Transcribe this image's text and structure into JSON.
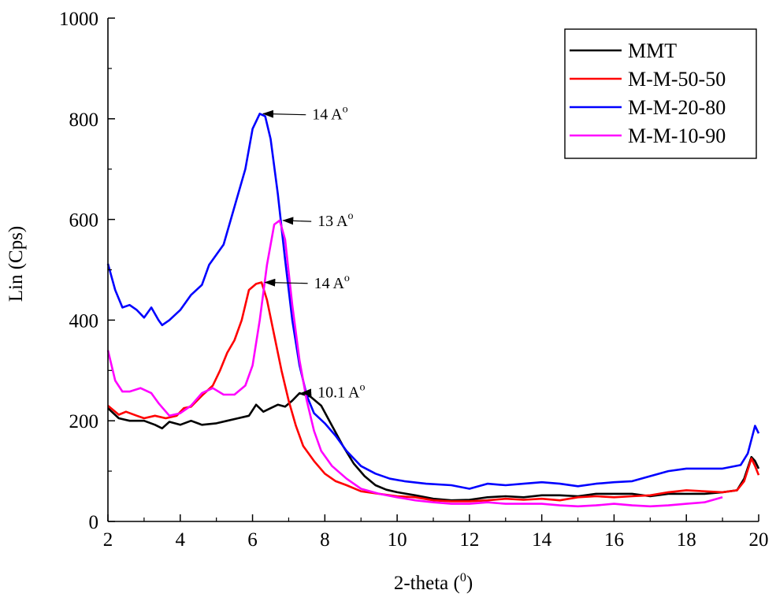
{
  "chart_data": {
    "type": "line",
    "xlabel": "2-theta (",
    "xlabel_sup": "0",
    "xlabel_end": ")",
    "ylabel": "Lin (Cps)",
    "xlim": [
      2,
      20
    ],
    "ylim": [
      0,
      1000
    ],
    "x_ticks": [
      "2",
      "4",
      "6",
      "8",
      "10",
      "12",
      "14",
      "16",
      "18",
      "20"
    ],
    "y_ticks": [
      "0",
      "200",
      "400",
      "600",
      "800",
      "1000"
    ],
    "legend_position": "top-right",
    "series": [
      {
        "name": "MMT",
        "color": "#000000",
        "points": [
          [
            2,
            225
          ],
          [
            2.3,
            205
          ],
          [
            2.6,
            200
          ],
          [
            3,
            200
          ],
          [
            3.3,
            192
          ],
          [
            3.5,
            185
          ],
          [
            3.7,
            198
          ],
          [
            4,
            192
          ],
          [
            4.3,
            200
          ],
          [
            4.6,
            192
          ],
          [
            5,
            195
          ],
          [
            5.3,
            200
          ],
          [
            5.6,
            205
          ],
          [
            5.9,
            210
          ],
          [
            6.1,
            232
          ],
          [
            6.3,
            218
          ],
          [
            6.5,
            225
          ],
          [
            6.7,
            232
          ],
          [
            6.9,
            228
          ],
          [
            7.1,
            240
          ],
          [
            7.3,
            255
          ],
          [
            7.6,
            248
          ],
          [
            7.9,
            230
          ],
          [
            8.2,
            190
          ],
          [
            8.5,
            150
          ],
          [
            8.8,
            115
          ],
          [
            9.1,
            90
          ],
          [
            9.4,
            72
          ],
          [
            9.7,
            63
          ],
          [
            10,
            58
          ],
          [
            10.5,
            52
          ],
          [
            11,
            45
          ],
          [
            11.5,
            42
          ],
          [
            12,
            43
          ],
          [
            12.5,
            48
          ],
          [
            13,
            50
          ],
          [
            13.5,
            48
          ],
          [
            14,
            52
          ],
          [
            14.5,
            52
          ],
          [
            15,
            50
          ],
          [
            15.5,
            55
          ],
          [
            16,
            55
          ],
          [
            16.5,
            55
          ],
          [
            17,
            50
          ],
          [
            17.5,
            55
          ],
          [
            18,
            55
          ],
          [
            18.5,
            55
          ],
          [
            19,
            58
          ],
          [
            19.4,
            62
          ],
          [
            19.6,
            85
          ],
          [
            19.8,
            128
          ],
          [
            19.9,
            120
          ],
          [
            20,
            105
          ]
        ]
      },
      {
        "name": "M-M-50-50",
        "color": "#ff0000",
        "points": [
          [
            2,
            230
          ],
          [
            2.3,
            212
          ],
          [
            2.5,
            218
          ],
          [
            2.8,
            210
          ],
          [
            3,
            205
          ],
          [
            3.3,
            210
          ],
          [
            3.6,
            205
          ],
          [
            3.9,
            210
          ],
          [
            4.1,
            225
          ],
          [
            4.3,
            228
          ],
          [
            4.6,
            250
          ],
          [
            4.9,
            270
          ],
          [
            5.1,
            300
          ],
          [
            5.3,
            335
          ],
          [
            5.5,
            360
          ],
          [
            5.7,
            400
          ],
          [
            5.9,
            460
          ],
          [
            6.1,
            472
          ],
          [
            6.25,
            475
          ],
          [
            6.4,
            440
          ],
          [
            6.6,
            370
          ],
          [
            6.8,
            300
          ],
          [
            7,
            240
          ],
          [
            7.2,
            190
          ],
          [
            7.4,
            150
          ],
          [
            7.7,
            120
          ],
          [
            8,
            95
          ],
          [
            8.3,
            80
          ],
          [
            8.6,
            72
          ],
          [
            9,
            60
          ],
          [
            9.5,
            55
          ],
          [
            10,
            50
          ],
          [
            10.5,
            48
          ],
          [
            11,
            42
          ],
          [
            11.5,
            40
          ],
          [
            12,
            40
          ],
          [
            12.5,
            42
          ],
          [
            13,
            45
          ],
          [
            13.5,
            43
          ],
          [
            14,
            45
          ],
          [
            14.5,
            42
          ],
          [
            15,
            48
          ],
          [
            15.5,
            50
          ],
          [
            16,
            48
          ],
          [
            16.5,
            50
          ],
          [
            17,
            52
          ],
          [
            17.5,
            58
          ],
          [
            18,
            62
          ],
          [
            18.5,
            60
          ],
          [
            19,
            58
          ],
          [
            19.4,
            62
          ],
          [
            19.6,
            80
          ],
          [
            19.8,
            125
          ],
          [
            19.9,
            110
          ],
          [
            20,
            92
          ]
        ]
      },
      {
        "name": "M-M-20-80",
        "color": "#0000ff",
        "points": [
          [
            2,
            512
          ],
          [
            2.2,
            460
          ],
          [
            2.4,
            425
          ],
          [
            2.6,
            430
          ],
          [
            2.8,
            420
          ],
          [
            3,
            405
          ],
          [
            3.2,
            425
          ],
          [
            3.4,
            400
          ],
          [
            3.5,
            390
          ],
          [
            3.7,
            400
          ],
          [
            4,
            420
          ],
          [
            4.3,
            450
          ],
          [
            4.6,
            470
          ],
          [
            4.8,
            510
          ],
          [
            5,
            530
          ],
          [
            5.2,
            550
          ],
          [
            5.4,
            600
          ],
          [
            5.6,
            650
          ],
          [
            5.8,
            700
          ],
          [
            6,
            780
          ],
          [
            6.2,
            810
          ],
          [
            6.35,
            805
          ],
          [
            6.5,
            760
          ],
          [
            6.7,
            650
          ],
          [
            6.9,
            520
          ],
          [
            7.1,
            400
          ],
          [
            7.3,
            310
          ],
          [
            7.5,
            250
          ],
          [
            7.7,
            215
          ],
          [
            8,
            195
          ],
          [
            8.3,
            170
          ],
          [
            8.6,
            140
          ],
          [
            9,
            110
          ],
          [
            9.4,
            95
          ],
          [
            9.8,
            85
          ],
          [
            10.2,
            80
          ],
          [
            10.8,
            75
          ],
          [
            11.5,
            72
          ],
          [
            12,
            65
          ],
          [
            12.5,
            75
          ],
          [
            13,
            72
          ],
          [
            13.5,
            75
          ],
          [
            14,
            78
          ],
          [
            14.5,
            75
          ],
          [
            15,
            70
          ],
          [
            15.5,
            75
          ],
          [
            16,
            78
          ],
          [
            16.5,
            80
          ],
          [
            17,
            90
          ],
          [
            17.5,
            100
          ],
          [
            18,
            105
          ],
          [
            18.5,
            105
          ],
          [
            19,
            105
          ],
          [
            19.5,
            112
          ],
          [
            19.7,
            135
          ],
          [
            19.9,
            190
          ],
          [
            20,
            175
          ]
        ]
      },
      {
        "name": "M-M-10-90",
        "color": "#ff00ff",
        "points": [
          [
            2,
            340
          ],
          [
            2.2,
            280
          ],
          [
            2.4,
            258
          ],
          [
            2.6,
            258
          ],
          [
            2.9,
            265
          ],
          [
            3.2,
            255
          ],
          [
            3.4,
            235
          ],
          [
            3.7,
            210
          ],
          [
            4,
            215
          ],
          [
            4.3,
            230
          ],
          [
            4.6,
            255
          ],
          [
            4.9,
            265
          ],
          [
            5.2,
            252
          ],
          [
            5.5,
            252
          ],
          [
            5.8,
            270
          ],
          [
            6,
            310
          ],
          [
            6.2,
            400
          ],
          [
            6.4,
            510
          ],
          [
            6.6,
            590
          ],
          [
            6.75,
            598
          ],
          [
            6.9,
            560
          ],
          [
            7.1,
            430
          ],
          [
            7.3,
            320
          ],
          [
            7.5,
            240
          ],
          [
            7.7,
            180
          ],
          [
            7.9,
            140
          ],
          [
            8.2,
            110
          ],
          [
            8.6,
            85
          ],
          [
            9,
            65
          ],
          [
            9.5,
            55
          ],
          [
            10,
            48
          ],
          [
            10.5,
            42
          ],
          [
            11,
            38
          ],
          [
            11.5,
            35
          ],
          [
            12,
            35
          ],
          [
            12.5,
            38
          ],
          [
            13,
            35
          ],
          [
            13.5,
            35
          ],
          [
            14,
            35
          ],
          [
            14.5,
            32
          ],
          [
            15,
            30
          ],
          [
            15.5,
            32
          ],
          [
            16,
            35
          ],
          [
            16.5,
            32
          ],
          [
            17,
            30
          ],
          [
            17.5,
            32
          ],
          [
            18,
            35
          ],
          [
            18.5,
            38
          ],
          [
            19,
            48
          ]
        ]
      }
    ],
    "annotations": [
      {
        "label": "14 A",
        "sup": "o",
        "point": [
          6.25,
          810
        ],
        "text_pos": [
          7.65,
          808
        ]
      },
      {
        "label": "13 A",
        "sup": "o",
        "point": [
          6.8,
          598
        ],
        "text_pos": [
          7.8,
          596
        ]
      },
      {
        "label": "14 A",
        "sup": "o",
        "point": [
          6.3,
          475
        ],
        "text_pos": [
          7.7,
          473
        ]
      },
      {
        "label": "10.1 A",
        "sup": "o",
        "point": [
          7.3,
          255
        ],
        "text_pos": [
          7.8,
          256
        ]
      }
    ]
  }
}
